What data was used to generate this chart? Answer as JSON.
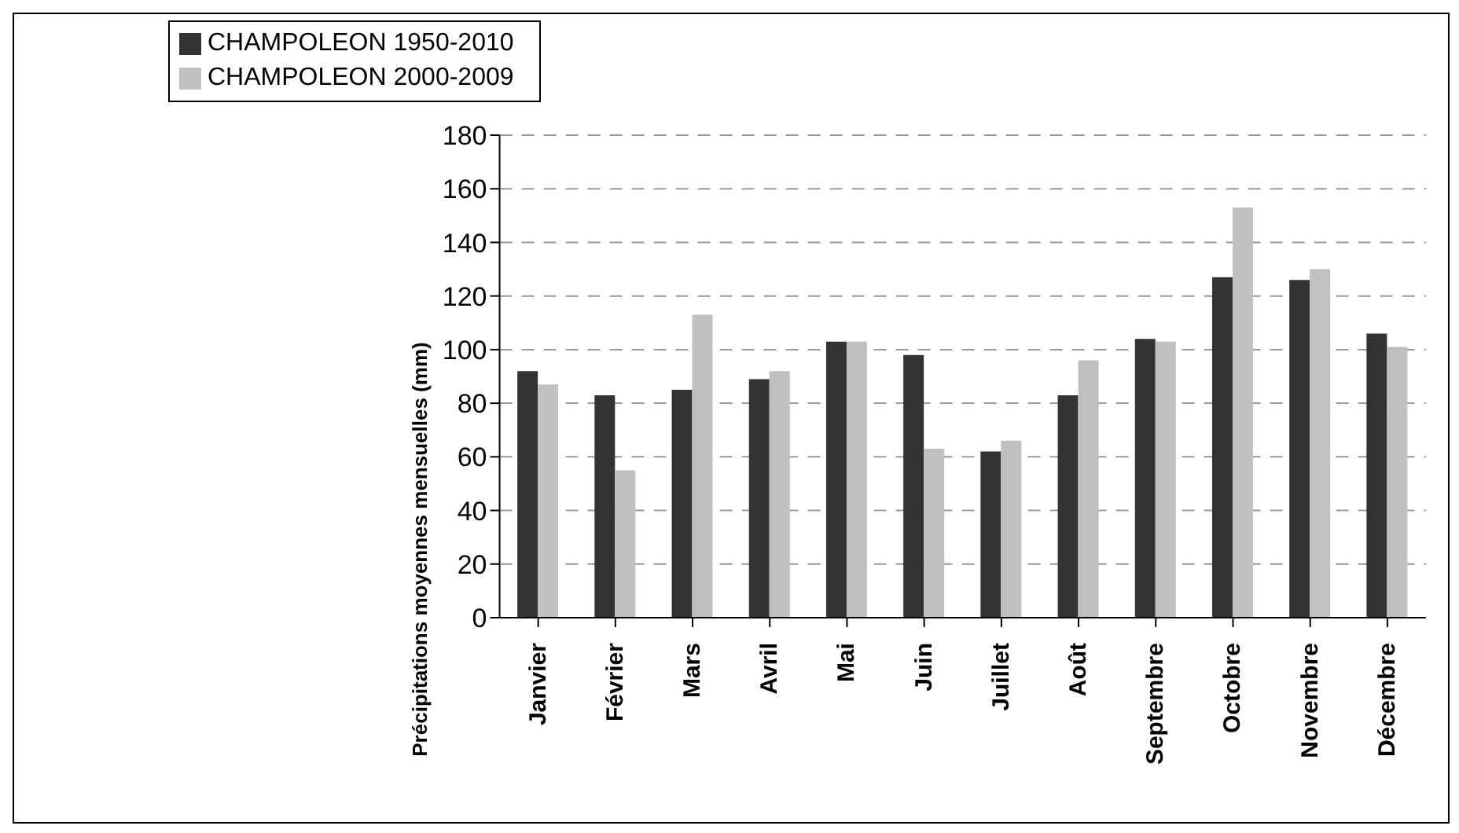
{
  "chart_data": {
    "type": "bar",
    "ylabel": "Précipitations moyennes mensuelles (mm)",
    "categories": [
      "Janvier",
      "Février",
      "Mars",
      "Avril",
      "Mai",
      "Juin",
      "Juillet",
      "Août",
      "Septembre",
      "Octobre",
      "Novembre",
      "Décembre"
    ],
    "series": [
      {
        "name": "CHAMPOLEON 1950-2010",
        "color": "#333333",
        "values": [
          92,
          83,
          85,
          89,
          103,
          98,
          62,
          83,
          104,
          127,
          126,
          106
        ]
      },
      {
        "name": "CHAMPOLEON 2000-2009",
        "color": "#c0c0c0",
        "values": [
          87,
          55,
          113,
          92,
          103,
          63,
          66,
          96,
          103,
          153,
          130,
          101
        ]
      }
    ],
    "ylim": [
      0,
      180
    ],
    "yticks": [
      0,
      20,
      40,
      60,
      80,
      100,
      120,
      140,
      160,
      180
    ],
    "grid": "y",
    "legend": "top left"
  }
}
